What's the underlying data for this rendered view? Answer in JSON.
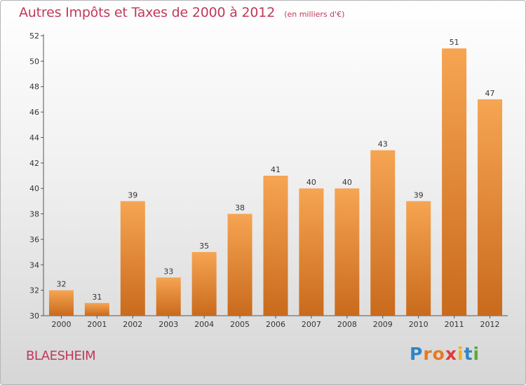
{
  "chart_data": {
    "type": "bar",
    "title": "Autres Impôts et Taxes de 2000 à 2012",
    "subtitle": "(en milliers d'€)",
    "categories": [
      "2000",
      "2001",
      "2002",
      "2003",
      "2004",
      "2005",
      "2006",
      "2007",
      "2008",
      "2009",
      "2010",
      "2011",
      "2012"
    ],
    "values": [
      32,
      31,
      39,
      33,
      35,
      38,
      41,
      40,
      40,
      43,
      39,
      51,
      47
    ],
    "data_labels": [
      "32",
      "31",
      "39",
      "33",
      "35",
      "38",
      "41",
      "40",
      "40",
      "43",
      "39",
      "51",
      "47"
    ],
    "ylim": [
      30,
      52
    ],
    "yticks": [
      30,
      32,
      34,
      36,
      38,
      40,
      42,
      44,
      46,
      48,
      50,
      52
    ],
    "xlabel": "",
    "ylabel": "",
    "grid": false,
    "bar_color_top": "#f6a552",
    "bar_color_bottom": "#c96a1c",
    "axis_color": "#555555"
  },
  "place_name": "BLAESHEIM",
  "brand": {
    "text": "Proxiti",
    "letter_colors": [
      "#2e86c8",
      "#e77a1f",
      "#e77a1f",
      "#e23a3a",
      "#f0b21b",
      "#2e86c8",
      "#5aaa35"
    ]
  },
  "title_color": "#c0395a"
}
